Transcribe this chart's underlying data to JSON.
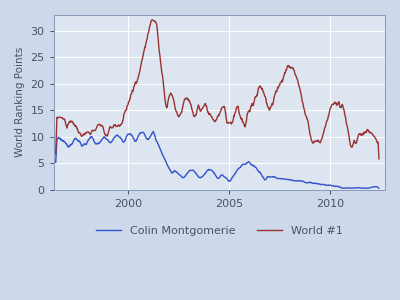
{
  "ylabel": "World Ranking Points",
  "bg_color": "#dde5f0",
  "fig_bg_color": "#cdd8ea",
  "colin_color": "#3355cc",
  "world1_color": "#993333",
  "legend_labels": [
    "Colin Montgomerie",
    "World #1"
  ],
  "xlim_start": 1996.3,
  "xlim_end": 2012.7,
  "ylim": [
    0,
    33
  ],
  "yticks": [
    0,
    5,
    10,
    15,
    20,
    25,
    30
  ],
  "xticks": [
    2000,
    2005,
    2010
  ],
  "linewidth": 1.0
}
